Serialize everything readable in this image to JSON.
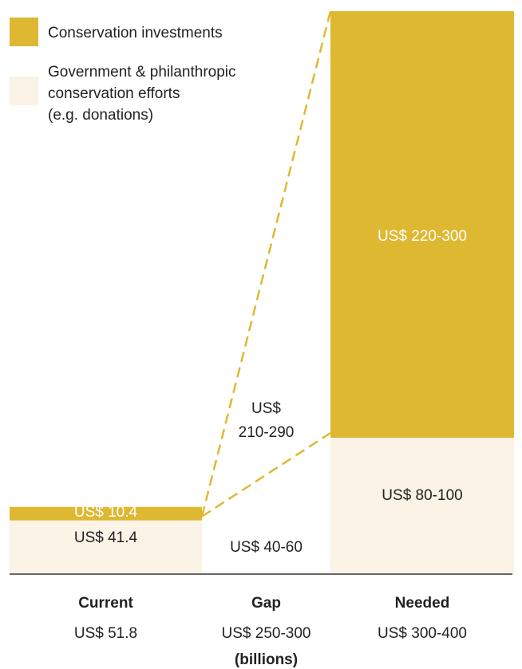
{
  "chart_data": {
    "type": "bar",
    "unit_note": "(billions)",
    "colors": {
      "conservation_investments": "#DFB832",
      "government_philanthropic": "#FAF3E6",
      "baseline": "#666666",
      "label_light": "#ffffff",
      "label_dark": "#222222"
    },
    "legend": [
      {
        "label": "Conservation investments",
        "color": "#DFB832"
      },
      {
        "label": "Government & philanthropic\nconservation efforts\n(e.g. donations)",
        "color": "#FAF3E6"
      }
    ],
    "categories": [
      {
        "name": "Current",
        "total_label": "US$ 51.8"
      },
      {
        "name": "Gap",
        "total_label": "US$ 250-300"
      },
      {
        "name": "Needed",
        "total_label": "US$ 300-400"
      }
    ],
    "series": [
      {
        "name": "Government & philanthropic conservation efforts (e.g. donations)",
        "values": [
          41.4,
          50,
          90
        ],
        "labels": [
          "US$ 41.4",
          "US$ 40-60",
          "US$ 80-100"
        ]
      },
      {
        "name": "Conservation investments",
        "values": [
          10.4,
          250,
          260
        ],
        "labels": [
          "US$ 10.4",
          "US$\n210-290",
          "US$ 220-300"
        ]
      }
    ]
  }
}
